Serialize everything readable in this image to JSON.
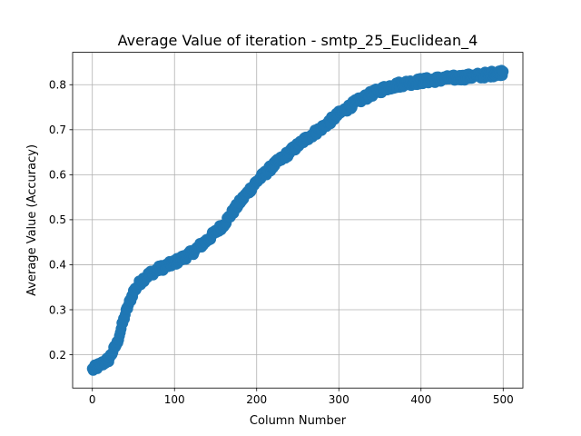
{
  "chart_data": {
    "type": "scatter",
    "title": "Average Value of iteration - smtp_25_Euclidean_4",
    "xlabel": "Column Number",
    "ylabel": "Average Value (Accuracy)",
    "xlim": [
      -24,
      524
    ],
    "ylim": [
      0.126,
      0.872
    ],
    "xticks": [
      0,
      100,
      200,
      300,
      400,
      500
    ],
    "yticks": [
      0.2,
      0.3,
      0.4,
      0.5,
      0.6,
      0.7,
      0.8
    ],
    "grid": true,
    "marker_color": "#1f77b4",
    "trend_points": {
      "x": [
        0,
        10,
        20,
        30,
        40,
        50,
        60,
        70,
        80,
        90,
        100,
        120,
        140,
        160,
        180,
        200,
        220,
        240,
        260,
        280,
        300,
        320,
        340,
        360,
        380,
        400,
        420,
        440,
        460,
        480,
        500
      ],
      "y": [
        0.167,
        0.178,
        0.19,
        0.225,
        0.29,
        0.34,
        0.365,
        0.38,
        0.39,
        0.397,
        0.405,
        0.425,
        0.455,
        0.49,
        0.54,
        0.585,
        0.62,
        0.65,
        0.68,
        0.705,
        0.735,
        0.76,
        0.78,
        0.795,
        0.803,
        0.808,
        0.812,
        0.815,
        0.818,
        0.822,
        0.828
      ]
    },
    "num_points": 501,
    "noise_amplitude": 0.007
  }
}
